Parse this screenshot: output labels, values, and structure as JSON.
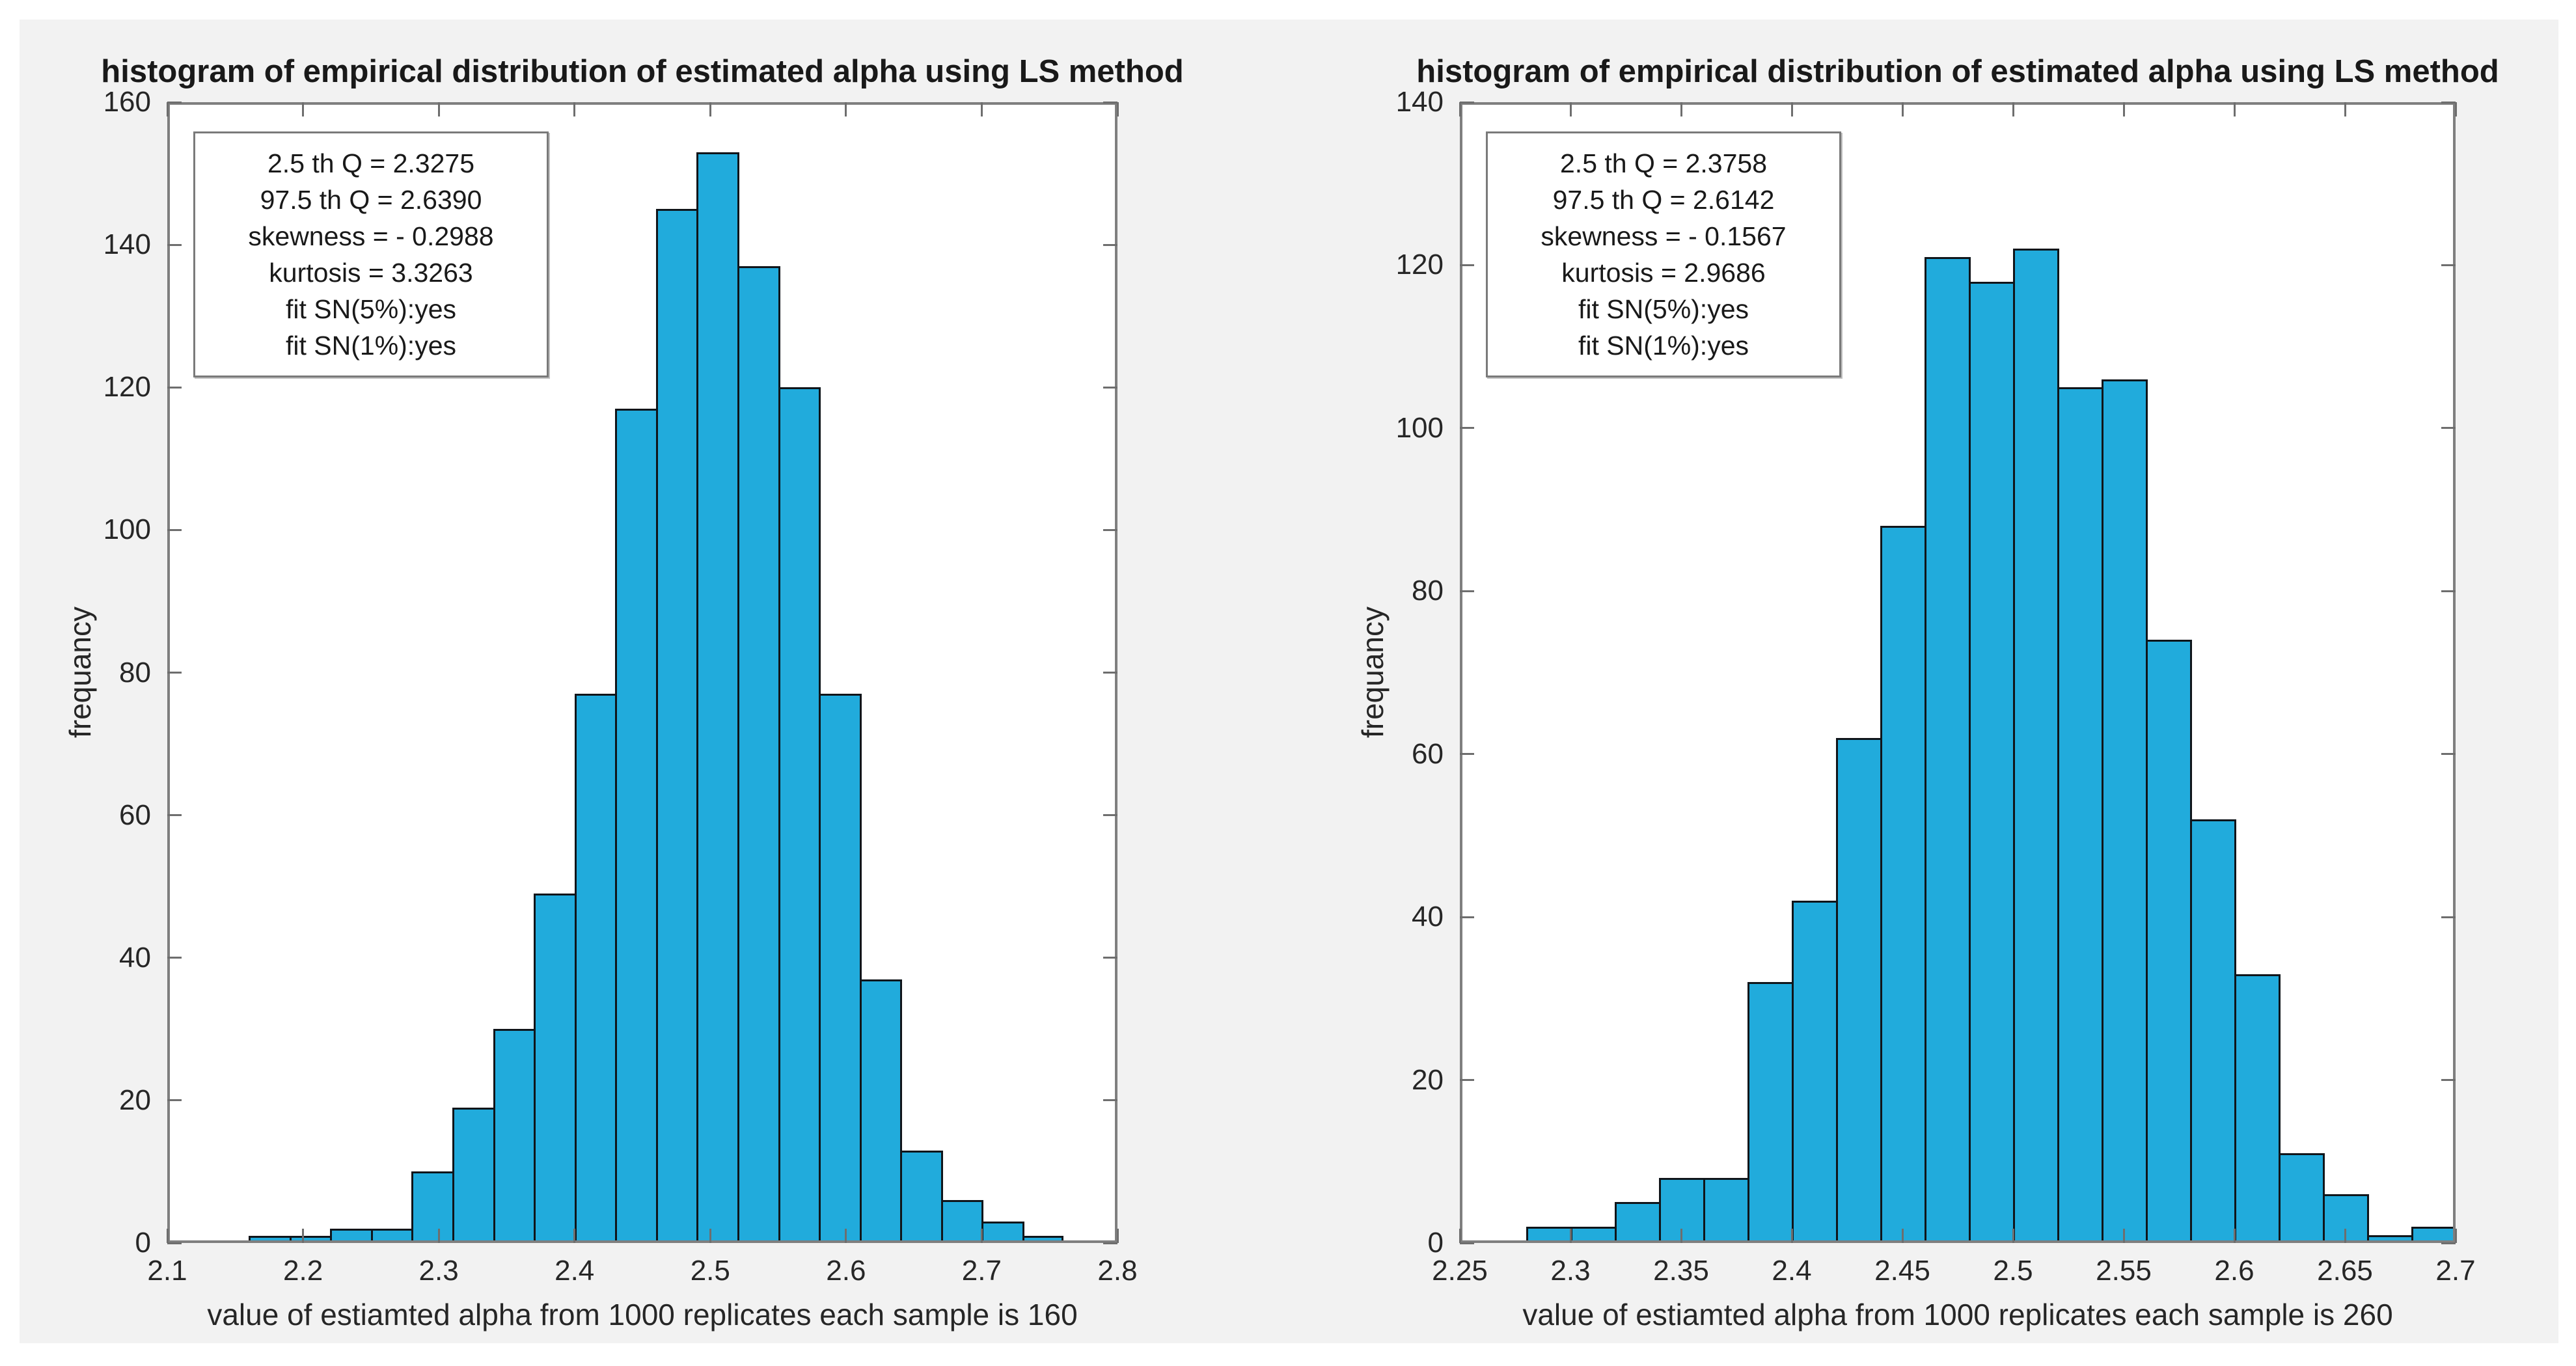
{
  "colors": {
    "figure_bg": "#F2F2F2",
    "plot_bg": "#FFFFFF",
    "bar_fill": "#21ABDC",
    "bar_edge": "#10151A",
    "axis_frame": "#7F7F7F",
    "tick_color": "#6E6E6E",
    "text": "#262626"
  },
  "chart_data": [
    {
      "type": "bar",
      "subtype": "histogram",
      "title": "histogram of empirical distribution of estimated alpha using LS method",
      "xlabel": "value of estiamted alpha from 1000 replicates each sample is 160",
      "ylabel": "frequancy",
      "xlim": [
        2.1,
        2.8
      ],
      "ylim": [
        0,
        160
      ],
      "grid": false,
      "legend": null,
      "xtick_values": [
        2.1,
        2.2,
        2.3,
        2.4,
        2.5,
        2.6,
        2.7,
        2.8
      ],
      "xtick_labels": [
        "2.1",
        "2.2",
        "2.3",
        "2.4",
        "2.5",
        "2.6",
        "2.7",
        "2.8"
      ],
      "ytick_values": [
        0,
        20,
        40,
        60,
        80,
        100,
        120,
        140,
        160
      ],
      "ytick_labels": [
        "0",
        "20",
        "40",
        "60",
        "80",
        "100",
        "120",
        "140",
        "160"
      ],
      "bin_edges": [
        2.16,
        2.19,
        2.22,
        2.25,
        2.28,
        2.31,
        2.34,
        2.37,
        2.4,
        2.43,
        2.46,
        2.49,
        2.52,
        2.55,
        2.58,
        2.61,
        2.64,
        2.67,
        2.7,
        2.73,
        2.76
      ],
      "counts": [
        1,
        1,
        2,
        2,
        10,
        19,
        30,
        49,
        77,
        117,
        145,
        153,
        137,
        120,
        77,
        37,
        13,
        6,
        3,
        1
      ],
      "annotation_lines": [
        "2.5 th Q = 2.3275",
        "97.5 th Q = 2.6390",
        "skewness = - 0.2988",
        "kurtosis = 3.3263",
        "fit SN(5%):yes",
        "fit SN(1%):yes"
      ]
    },
    {
      "type": "bar",
      "subtype": "histogram",
      "title": "histogram of empirical distribution of estimated alpha using LS method",
      "xlabel": "value of estiamted alpha from 1000 replicates each sample is 260",
      "ylabel": "frequancy",
      "xlim": [
        2.25,
        2.7
      ],
      "ylim": [
        0,
        140
      ],
      "grid": false,
      "legend": null,
      "xtick_values": [
        2.25,
        2.3,
        2.35,
        2.4,
        2.45,
        2.5,
        2.55,
        2.6,
        2.65,
        2.7
      ],
      "xtick_labels": [
        "2.25",
        "2.3",
        "2.35",
        "2.4",
        "2.45",
        "2.5",
        "2.55",
        "2.6",
        "2.65",
        "2.7"
      ],
      "ytick_values": [
        0,
        20,
        40,
        60,
        80,
        100,
        120,
        140
      ],
      "ytick_labels": [
        "0",
        "20",
        "40",
        "60",
        "80",
        "100",
        "120",
        "140"
      ],
      "bin_edges": [
        2.28,
        2.3,
        2.32,
        2.34,
        2.36,
        2.38,
        2.4,
        2.42,
        2.44,
        2.46,
        2.48,
        2.5,
        2.52,
        2.54,
        2.56,
        2.58,
        2.6,
        2.62,
        2.64,
        2.66,
        2.68,
        2.7
      ],
      "counts": [
        2,
        2,
        5,
        8,
        8,
        32,
        42,
        62,
        88,
        121,
        118,
        122,
        105,
        106,
        74,
        52,
        33,
        11,
        6,
        1,
        2
      ],
      "annotation_lines": [
        "2.5 th Q = 2.3758",
        "97.5 th Q = 2.6142",
        "skewness = - 0.1567",
        "kurtosis = 2.9686",
        "fit SN(5%):yes",
        "fit SN(1%):yes"
      ]
    }
  ]
}
